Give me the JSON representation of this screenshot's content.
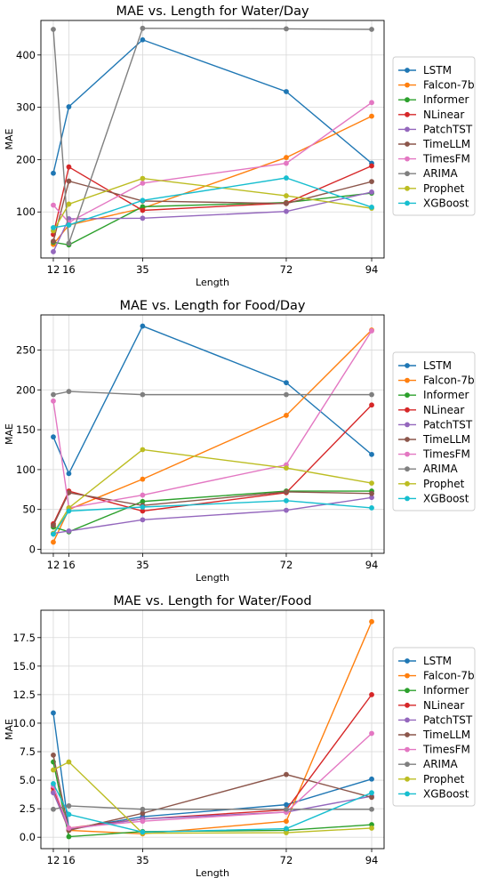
{
  "chart_data": [
    {
      "type": "line",
      "title": "MAE vs. Length for Water/Day",
      "xlabel": "Length",
      "ylabel": "MAE",
      "x": [
        12,
        16,
        35,
        72,
        94
      ],
      "xticks": [
        12,
        16,
        35,
        72,
        94
      ],
      "xlim": [
        8.8,
        97.2
      ],
      "ylim": [
        12,
        466
      ],
      "yticks": [
        100,
        200,
        300,
        400
      ],
      "grid": true,
      "legend": "right",
      "series": [
        {
          "name": "LSTM",
          "color": "#1f77b4",
          "values": [
            174,
            301,
            429,
            330,
            193
          ]
        },
        {
          "name": "Falcon-7b",
          "color": "#ff7f0e",
          "values": [
            38,
            75,
            107,
            204,
            283
          ]
        },
        {
          "name": "Informer",
          "color": "#2ca02c",
          "values": [
            42,
            37,
            110,
            118,
            136
          ]
        },
        {
          "name": "NLinear",
          "color": "#d62728",
          "values": [
            57,
            186,
            103,
            117,
            188
          ]
        },
        {
          "name": "PatchTST",
          "color": "#9467bd",
          "values": [
            24,
            87,
            88,
            101,
            138
          ]
        },
        {
          "name": "TimeLLM",
          "color": "#8c564b",
          "values": [
            44,
            159,
            121,
            116,
            158
          ]
        },
        {
          "name": "TimesFM",
          "color": "#e377c2",
          "values": [
            113,
            80,
            155,
            193,
            309
          ]
        },
        {
          "name": "ARIMA",
          "color": "#7f7f7f",
          "values": [
            449,
            40,
            451,
            450,
            449
          ]
        },
        {
          "name": "Prophet",
          "color": "#bcbd22",
          "values": [
            64,
            115,
            164,
            131,
            107
          ]
        },
        {
          "name": "XGBoost",
          "color": "#17becf",
          "values": [
            70,
            75,
            122,
            165,
            109
          ]
        }
      ]
    },
    {
      "type": "line",
      "title": "MAE vs. Length for Food/Day",
      "xlabel": "Length",
      "ylabel": "MAE",
      "x": [
        12,
        16,
        35,
        72,
        94
      ],
      "xticks": [
        12,
        16,
        35,
        72,
        94
      ],
      "xlim": [
        8.8,
        97.2
      ],
      "ylim": [
        -5,
        294
      ],
      "yticks": [
        0,
        50,
        100,
        150,
        200,
        250
      ],
      "grid": true,
      "legend": "right",
      "series": [
        {
          "name": "LSTM",
          "color": "#1f77b4",
          "values": [
            141,
            95,
            280,
            209,
            119
          ]
        },
        {
          "name": "Falcon-7b",
          "color": "#ff7f0e",
          "values": [
            9,
            50,
            88,
            168,
            275
          ]
        },
        {
          "name": "Informer",
          "color": "#2ca02c",
          "values": [
            28,
            22,
            60,
            73,
            73
          ]
        },
        {
          "name": "NLinear",
          "color": "#d62728",
          "values": [
            32,
            73,
            48,
            71,
            181
          ]
        },
        {
          "name": "PatchTST",
          "color": "#9467bd",
          "values": [
            20,
            23,
            37,
            49,
            65
          ]
        },
        {
          "name": "TimeLLM",
          "color": "#8c564b",
          "values": [
            30,
            71,
            55,
            72,
            70
          ]
        },
        {
          "name": "TimesFM",
          "color": "#e377c2",
          "values": [
            186,
            52,
            68,
            106,
            274
          ]
        },
        {
          "name": "ARIMA",
          "color": "#7f7f7f",
          "values": [
            194,
            198,
            194,
            194,
            194
          ]
        },
        {
          "name": "Prophet",
          "color": "#bcbd22",
          "values": [
            20,
            52,
            125,
            102,
            83
          ]
        },
        {
          "name": "XGBoost",
          "color": "#17becf",
          "values": [
            19,
            48,
            53,
            61,
            52
          ]
        }
      ]
    },
    {
      "type": "line",
      "title": "MAE vs. Length for Water/Food",
      "xlabel": "Length",
      "ylabel": "MAE",
      "x": [
        12,
        16,
        35,
        72,
        94
      ],
      "xticks": [
        12,
        16,
        35,
        72,
        94
      ],
      "xlim": [
        8.8,
        97.2
      ],
      "ylim": [
        -1.0,
        19.9
      ],
      "yticks": [
        "0.0",
        "2.5",
        "5.0",
        "7.5",
        "10.0",
        "12.5",
        "15.0",
        "17.5"
      ],
      "grid": true,
      "legend": "right",
      "series": [
        {
          "name": "LSTM",
          "color": "#1f77b4",
          "values": [
            10.9,
            0.7,
            1.8,
            2.85,
            5.1
          ]
        },
        {
          "name": "Falcon-7b",
          "color": "#ff7f0e",
          "values": [
            4.0,
            0.6,
            0.3,
            1.4,
            18.9
          ]
        },
        {
          "name": "Informer",
          "color": "#2ca02c",
          "values": [
            6.6,
            0.05,
            0.5,
            0.6,
            1.1
          ]
        },
        {
          "name": "NLinear",
          "color": "#d62728",
          "values": [
            4.3,
            0.8,
            1.6,
            2.4,
            12.5
          ]
        },
        {
          "name": "PatchTST",
          "color": "#9467bd",
          "values": [
            3.9,
            0.7,
            1.6,
            2.2,
            3.6
          ]
        },
        {
          "name": "TimeLLM",
          "color": "#8c564b",
          "values": [
            7.2,
            0.6,
            2.1,
            5.5,
            3.5
          ]
        },
        {
          "name": "TimesFM",
          "color": "#e377c2",
          "values": [
            4.5,
            0.8,
            1.4,
            2.2,
            9.1
          ]
        },
        {
          "name": "ARIMA",
          "color": "#7f7f7f",
          "values": [
            2.45,
            2.75,
            2.45,
            2.45,
            2.45
          ]
        },
        {
          "name": "Prophet",
          "color": "#bcbd22",
          "values": [
            5.9,
            6.6,
            0.35,
            0.4,
            0.8
          ]
        },
        {
          "name": "XGBoost",
          "color": "#17becf",
          "values": [
            4.7,
            2.0,
            0.45,
            0.75,
            3.9
          ]
        }
      ]
    }
  ]
}
